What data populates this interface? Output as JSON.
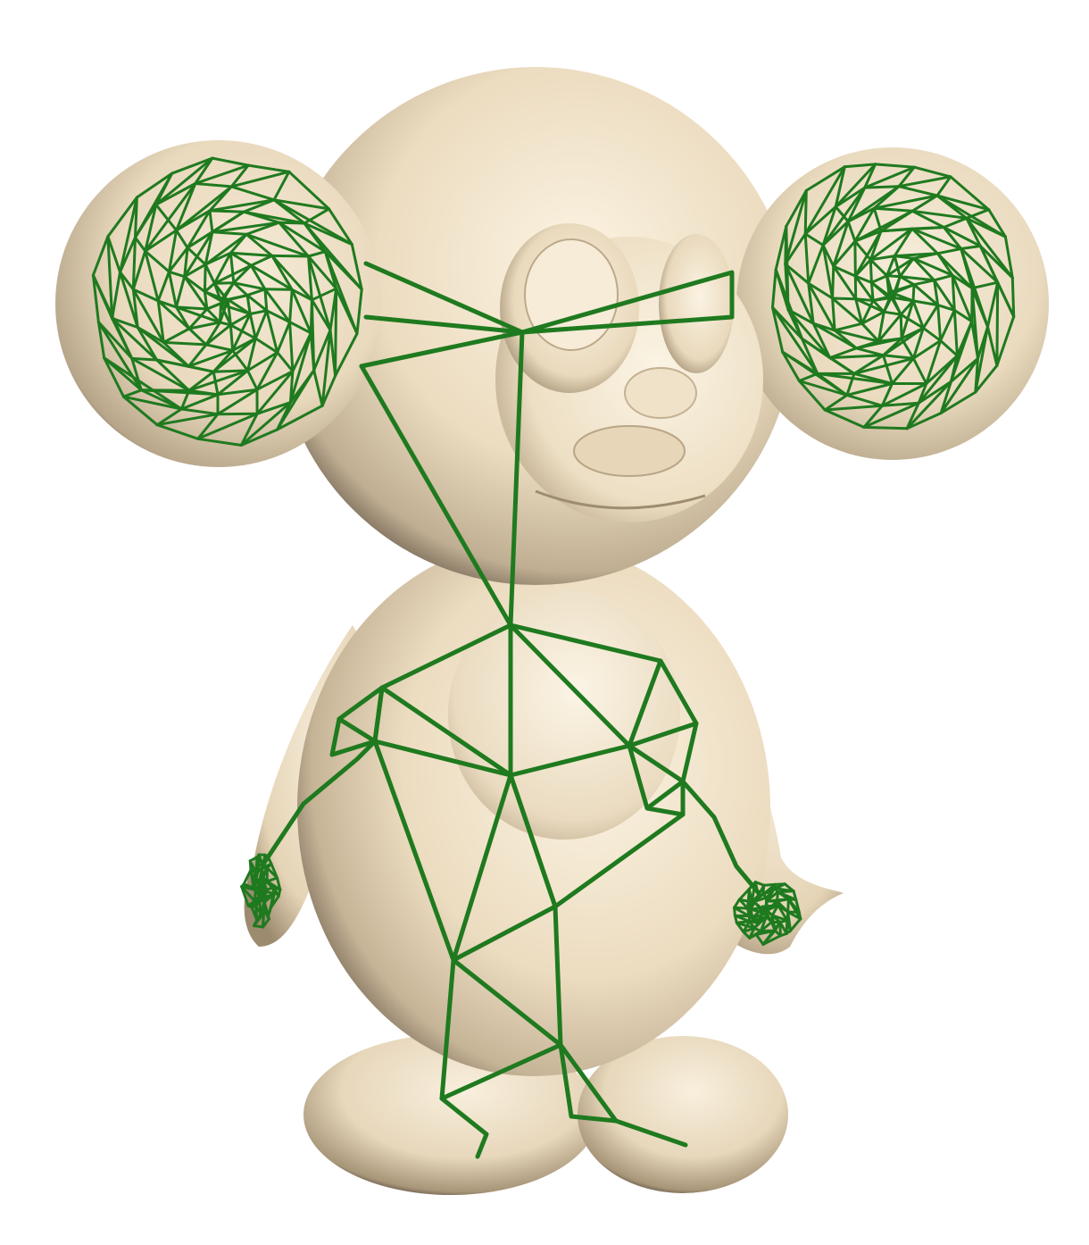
{
  "scene": {
    "subject": "cheburashka-figure",
    "colors": {
      "background": "#ffffff",
      "mesh_light": "#f7ecd6",
      "mesh_mid": "#e6d6b8",
      "mesh_dark": "#5b4c3f",
      "skeleton": "#1f7a1f"
    }
  }
}
